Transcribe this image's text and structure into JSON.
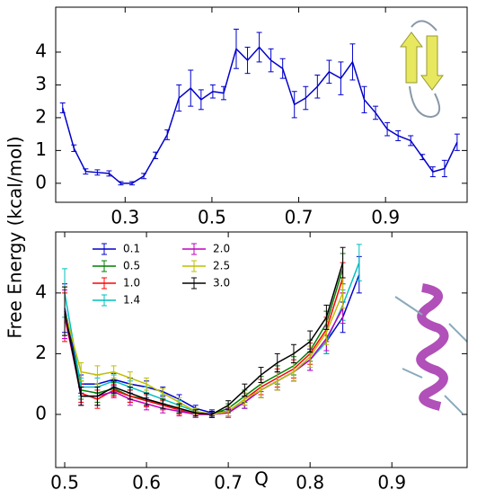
{
  "chart_data": [
    {
      "type": "line",
      "x": [
        0.156,
        0.182,
        0.209,
        0.236,
        0.263,
        0.29,
        0.316,
        0.343,
        0.37,
        0.397,
        0.424,
        0.451,
        0.475,
        0.502,
        0.527,
        0.556,
        0.582,
        0.609,
        0.636,
        0.663,
        0.69,
        0.716,
        0.743,
        0.77,
        0.797,
        0.824,
        0.851,
        0.877,
        0.904,
        0.929,
        0.958,
        0.985,
        1.009,
        1.036,
        1.065
      ],
      "values": [
        2.3,
        1.07,
        0.36,
        0.33,
        0.3,
        0.0,
        0.0,
        0.22,
        0.85,
        1.48,
        2.6,
        2.9,
        2.55,
        2.8,
        2.75,
        4.1,
        3.75,
        4.15,
        3.75,
        3.5,
        2.4,
        2.6,
        2.95,
        3.4,
        3.2,
        3.7,
        2.55,
        2.15,
        1.65,
        1.45,
        1.3,
        0.8,
        0.35,
        0.45,
        1.25
      ],
      "errors": [
        0.15,
        0.1,
        0.08,
        0.08,
        0.08,
        0.05,
        0.05,
        0.08,
        0.1,
        0.15,
        0.4,
        0.55,
        0.3,
        0.2,
        0.2,
        0.6,
        0.4,
        0.45,
        0.35,
        0.3,
        0.4,
        0.35,
        0.35,
        0.35,
        0.5,
        0.55,
        0.4,
        0.2,
        0.2,
        0.15,
        0.15,
        0.08,
        0.15,
        0.25,
        0.25
      ],
      "color": "#0000cc",
      "xlim": [
        0.14,
        1.088
      ],
      "ylim": [
        -0.58,
        5.37
      ],
      "xticks": [
        0.3,
        0.5,
        0.7,
        0.9
      ],
      "yticks": [
        0,
        1,
        2,
        3,
        4
      ]
    },
    {
      "type": "line",
      "ylabel": "Free Energy (kcal/mol)",
      "xlabel": "Q",
      "x": [
        0.5,
        0.52,
        0.54,
        0.56,
        0.58,
        0.6,
        0.62,
        0.64,
        0.66,
        0.68,
        0.7,
        0.72,
        0.74,
        0.76,
        0.78,
        0.8,
        0.82,
        0.84,
        0.86
      ],
      "series": [
        {
          "name": "0.1",
          "color": "#0000cc",
          "values": [
            3.5,
            1.0,
            1.0,
            1.15,
            1.0,
            0.9,
            0.75,
            0.5,
            0.2,
            0.05,
            0.1,
            0.4,
            0.8,
            1.1,
            1.4,
            1.8,
            2.4,
            3.2,
            4.6
          ],
          "errors": [
            0.8,
            0.3,
            0.3,
            0.2,
            0.2,
            0.2,
            0.15,
            0.15,
            0.1,
            0.1,
            0.15,
            0.2,
            0.25,
            0.3,
            0.3,
            0.35,
            0.4,
            0.5,
            0.6
          ]
        },
        {
          "name": "0.5",
          "color": "#007f00",
          "values": [
            3.3,
            0.8,
            0.7,
            0.85,
            0.6,
            0.5,
            0.35,
            0.2,
            0.05,
            0.0,
            0.2,
            0.6,
            1.0,
            1.3,
            1.6,
            2.1,
            3.0,
            4.8,
            null
          ],
          "errors": [
            0.8,
            0.3,
            0.3,
            0.2,
            0.2,
            0.2,
            0.15,
            0.15,
            0.1,
            0.1,
            0.15,
            0.2,
            0.25,
            0.3,
            0.3,
            0.35,
            0.4,
            0.5,
            null
          ]
        },
        {
          "name": "1.0",
          "color": "#ff0000",
          "values": [
            3.2,
            0.7,
            0.5,
            0.8,
            0.6,
            0.45,
            0.3,
            0.15,
            0.0,
            0.0,
            0.1,
            0.5,
            0.9,
            1.2,
            1.5,
            2.0,
            2.8,
            4.5,
            null
          ],
          "errors": [
            0.8,
            0.3,
            0.3,
            0.2,
            0.2,
            0.2,
            0.15,
            0.15,
            0.1,
            0.1,
            0.15,
            0.2,
            0.25,
            0.3,
            0.3,
            0.35,
            0.4,
            0.5,
            null
          ]
        },
        {
          "name": "1.4",
          "color": "#00bfbf",
          "values": [
            4.0,
            0.9,
            0.9,
            1.1,
            0.9,
            0.7,
            0.5,
            0.3,
            0.1,
            0.0,
            0.1,
            0.4,
            0.8,
            1.1,
            1.4,
            1.8,
            2.4,
            3.6,
            5.0
          ],
          "errors": [
            0.8,
            0.3,
            0.3,
            0.2,
            0.2,
            0.2,
            0.15,
            0.15,
            0.1,
            0.1,
            0.15,
            0.2,
            0.25,
            0.3,
            0.3,
            0.35,
            0.4,
            0.5,
            0.6
          ]
        },
        {
          "name": "2.0",
          "color": "#bf00bf",
          "values": [
            3.3,
            0.6,
            0.6,
            0.75,
            0.5,
            0.35,
            0.2,
            0.1,
            0.0,
            0.0,
            0.05,
            0.4,
            0.8,
            1.1,
            1.4,
            1.8,
            2.5,
            3.5,
            null
          ],
          "errors": [
            0.8,
            0.3,
            0.3,
            0.2,
            0.2,
            0.2,
            0.15,
            0.15,
            0.1,
            0.1,
            0.15,
            0.2,
            0.25,
            0.3,
            0.3,
            0.35,
            0.4,
            0.5,
            null
          ]
        },
        {
          "name": "2.5",
          "color": "#bfbf00",
          "values": [
            3.4,
            1.4,
            1.3,
            1.4,
            1.2,
            1.0,
            0.7,
            0.4,
            0.1,
            0.0,
            0.1,
            0.5,
            0.8,
            1.1,
            1.4,
            1.9,
            2.7,
            4.0,
            null
          ],
          "errors": [
            0.8,
            0.3,
            0.3,
            0.2,
            0.2,
            0.2,
            0.15,
            0.15,
            0.1,
            0.1,
            0.15,
            0.2,
            0.25,
            0.3,
            0.3,
            0.35,
            0.4,
            0.5,
            null
          ]
        },
        {
          "name": "3.0",
          "color": "#000000",
          "values": [
            3.4,
            0.6,
            0.6,
            0.9,
            0.7,
            0.5,
            0.35,
            0.2,
            0.05,
            0.0,
            0.3,
            0.8,
            1.3,
            1.7,
            2.0,
            2.4,
            3.2,
            5.0,
            null
          ],
          "errors": [
            0.8,
            0.3,
            0.3,
            0.2,
            0.2,
            0.2,
            0.15,
            0.15,
            0.1,
            0.1,
            0.15,
            0.2,
            0.25,
            0.3,
            0.3,
            0.35,
            0.4,
            0.5,
            null
          ]
        }
      ],
      "xlim": [
        0.489,
        0.992
      ],
      "ylim": [
        -1.75,
        6.01
      ],
      "xticks": [
        0.5,
        0.6,
        0.7,
        0.8,
        0.9
      ],
      "yticks": [
        0,
        2,
        4
      ]
    }
  ]
}
